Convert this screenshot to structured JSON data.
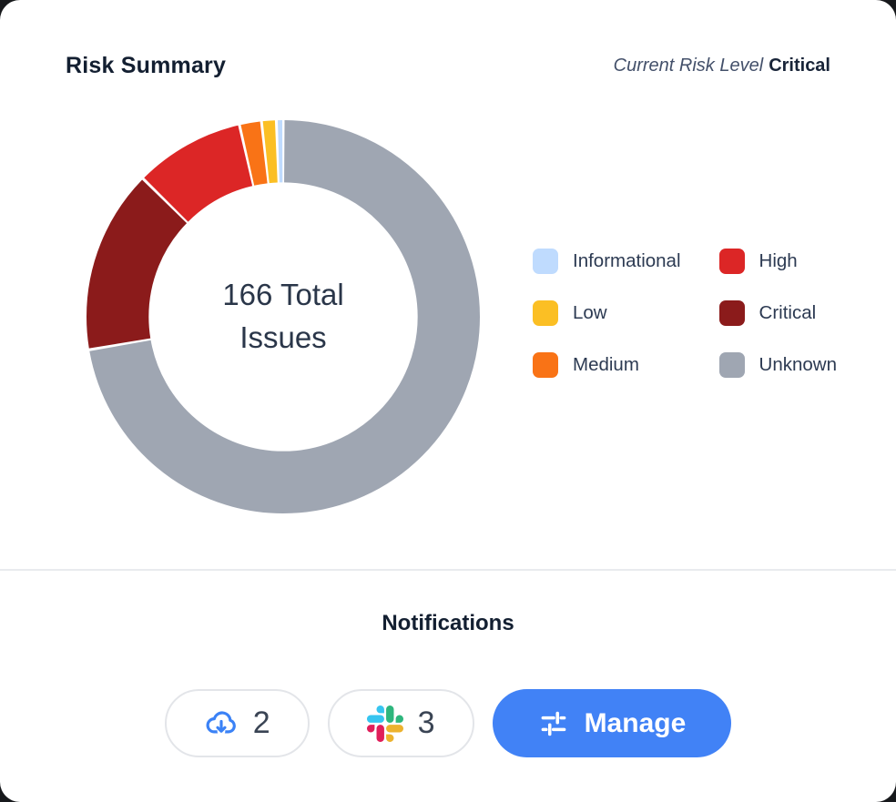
{
  "header": {
    "title": "Risk Summary",
    "risk_label": "Current Risk Level",
    "risk_value": "Critical"
  },
  "chart_data": {
    "type": "pie",
    "donut": true,
    "title": "Risk Summary",
    "center_label": "166 Total Issues",
    "total_issues": 166,
    "legend_position": "right",
    "series": [
      {
        "name": "Unknown",
        "value": 120,
        "color": "#9fa6b2"
      },
      {
        "name": "Critical",
        "value": 25,
        "color": "#8b1b1b"
      },
      {
        "name": "High",
        "value": 15,
        "color": "#dc2626"
      },
      {
        "name": "Medium",
        "value": 3,
        "color": "#f97316"
      },
      {
        "name": "Low",
        "value": 2,
        "color": "#fbbf24"
      },
      {
        "name": "Informational",
        "value": 1,
        "color": "#bfdbfe"
      }
    ]
  },
  "legend": {
    "items": [
      {
        "label": "Informational",
        "color": "#bfdbfe"
      },
      {
        "label": "Low",
        "color": "#fbbf24"
      },
      {
        "label": "Medium",
        "color": "#f97316"
      },
      {
        "label": "High",
        "color": "#dc2626"
      },
      {
        "label": "Critical",
        "color": "#8b1b1b"
      },
      {
        "label": "Unknown",
        "color": "#9fa6b2"
      }
    ]
  },
  "notifications": {
    "title": "Notifications",
    "badges": [
      {
        "icon": "cloud-download-icon",
        "count": "2"
      },
      {
        "icon": "slack-icon",
        "count": "3"
      }
    ],
    "manage_label": "Manage",
    "manage_color": "#4182f6",
    "accent_blue": "#3b82f6",
    "slack_colors": {
      "blue": "#36C5F0",
      "green": "#2EB67D",
      "red": "#E01E5A",
      "yellow": "#ECB22E"
    }
  }
}
